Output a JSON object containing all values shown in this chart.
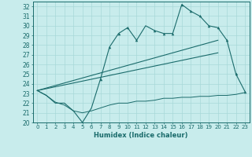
{
  "xlabel": "Humidex (Indice chaleur)",
  "bg_color": "#c8ecec",
  "grid_color": "#a8d8d8",
  "line_color": "#1a6b6b",
  "xlim": [
    -0.5,
    23.5
  ],
  "ylim": [
    20,
    32.5
  ],
  "xticks": [
    0,
    1,
    2,
    3,
    4,
    5,
    6,
    7,
    8,
    9,
    10,
    11,
    12,
    13,
    14,
    15,
    16,
    17,
    18,
    19,
    20,
    21,
    22,
    23
  ],
  "yticks": [
    20,
    21,
    22,
    23,
    24,
    25,
    26,
    27,
    28,
    29,
    30,
    31,
    32
  ],
  "series1_x": [
    0,
    1,
    2,
    3,
    4,
    5,
    6,
    7,
    8,
    9,
    10,
    11,
    12,
    13,
    14,
    15,
    16,
    17,
    18,
    19,
    20,
    21,
    22,
    23
  ],
  "series1_y": [
    23.3,
    22.8,
    22.0,
    22.0,
    21.2,
    20.0,
    21.5,
    24.5,
    27.8,
    29.2,
    29.8,
    28.5,
    30.0,
    29.5,
    29.2,
    29.2,
    32.2,
    31.5,
    31.0,
    30.0,
    29.8,
    28.5,
    25.0,
    23.2
  ],
  "series2_x": [
    0,
    1,
    2,
    3,
    4,
    5,
    6,
    7,
    8,
    9,
    10,
    11,
    12,
    13,
    14,
    15,
    16,
    17,
    18,
    19,
    20,
    21,
    22,
    23
  ],
  "series2_y": [
    23.3,
    22.8,
    22.1,
    21.8,
    21.2,
    21.0,
    21.2,
    21.5,
    21.8,
    22.0,
    22.0,
    22.2,
    22.2,
    22.3,
    22.5,
    22.5,
    22.6,
    22.6,
    22.7,
    22.7,
    22.8,
    22.8,
    22.9,
    23.1
  ],
  "series3_x": [
    0,
    20
  ],
  "series3_y": [
    23.3,
    28.5
  ],
  "series4_x": [
    0,
    20
  ],
  "series4_y": [
    23.3,
    27.2
  ],
  "marker_x": [
    7,
    8,
    9,
    10,
    11,
    13,
    14,
    15,
    16,
    17,
    18,
    19,
    20,
    21,
    22,
    23
  ],
  "marker_y": [
    24.5,
    27.8,
    29.2,
    29.8,
    28.5,
    29.5,
    29.2,
    29.2,
    32.2,
    31.5,
    31.0,
    30.0,
    29.8,
    28.5,
    25.0,
    23.2
  ]
}
